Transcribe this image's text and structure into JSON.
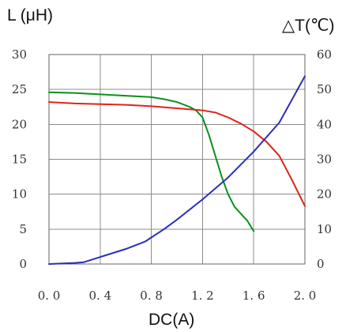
{
  "chart_data": {
    "type": "line",
    "xlabel": "DC(A)",
    "ylabel_left": "L (μH)",
    "ylabel_right": "△T(℃)",
    "xlim": [
      0.0,
      2.0
    ],
    "ylim_left": [
      0,
      30
    ],
    "ylim_right": [
      0,
      60
    ],
    "x_tick_labels": [
      "0. 0",
      "0. 4",
      "0. 8",
      "1. 2",
      "1. 6",
      "2. 0"
    ],
    "y_left_tick_labels": [
      "0",
      "5",
      "10",
      "15",
      "20",
      "25",
      "30"
    ],
    "y_right_tick_labels": [
      "0",
      "10",
      "20",
      "30",
      "40",
      "50",
      "60"
    ],
    "grid": true,
    "series": [
      {
        "color": "#0b8f1e",
        "axis": "left",
        "points": [
          [
            0.0,
            24.6
          ],
          [
            0.2,
            24.5
          ],
          [
            0.4,
            24.3
          ],
          [
            0.6,
            24.1
          ],
          [
            0.8,
            23.9
          ],
          [
            0.9,
            23.6
          ],
          [
            1.0,
            23.2
          ],
          [
            1.1,
            22.5
          ],
          [
            1.15,
            22.0
          ],
          [
            1.2,
            21.0
          ],
          [
            1.25,
            18.5
          ],
          [
            1.3,
            15.5
          ],
          [
            1.35,
            12.5
          ],
          [
            1.4,
            10.0
          ],
          [
            1.45,
            8.2
          ],
          [
            1.5,
            7.2
          ],
          [
            1.55,
            6.2
          ],
          [
            1.6,
            4.7
          ]
        ]
      },
      {
        "color": "#e0231c",
        "axis": "left",
        "points": [
          [
            0.0,
            23.2
          ],
          [
            0.2,
            23.0
          ],
          [
            0.4,
            22.9
          ],
          [
            0.6,
            22.8
          ],
          [
            0.8,
            22.6
          ],
          [
            1.0,
            22.3
          ],
          [
            1.2,
            22.0
          ],
          [
            1.3,
            21.7
          ],
          [
            1.4,
            21.0
          ],
          [
            1.5,
            20.1
          ],
          [
            1.6,
            19.0
          ],
          [
            1.7,
            17.5
          ],
          [
            1.8,
            15.5
          ],
          [
            1.9,
            12.0
          ],
          [
            2.0,
            8.3
          ]
        ]
      },
      {
        "color": "#2a2fb8",
        "axis": "right",
        "points": [
          [
            0.0,
            0.0
          ],
          [
            0.2,
            0.3
          ],
          [
            0.27,
            0.5
          ],
          [
            0.4,
            2.0
          ],
          [
            0.6,
            4.3
          ],
          [
            0.75,
            6.4
          ],
          [
            0.9,
            10.0
          ],
          [
            1.0,
            12.7
          ],
          [
            1.2,
            18.5
          ],
          [
            1.4,
            24.8
          ],
          [
            1.6,
            32.2
          ],
          [
            1.8,
            40.5
          ],
          [
            2.0,
            53.8
          ]
        ]
      }
    ]
  }
}
